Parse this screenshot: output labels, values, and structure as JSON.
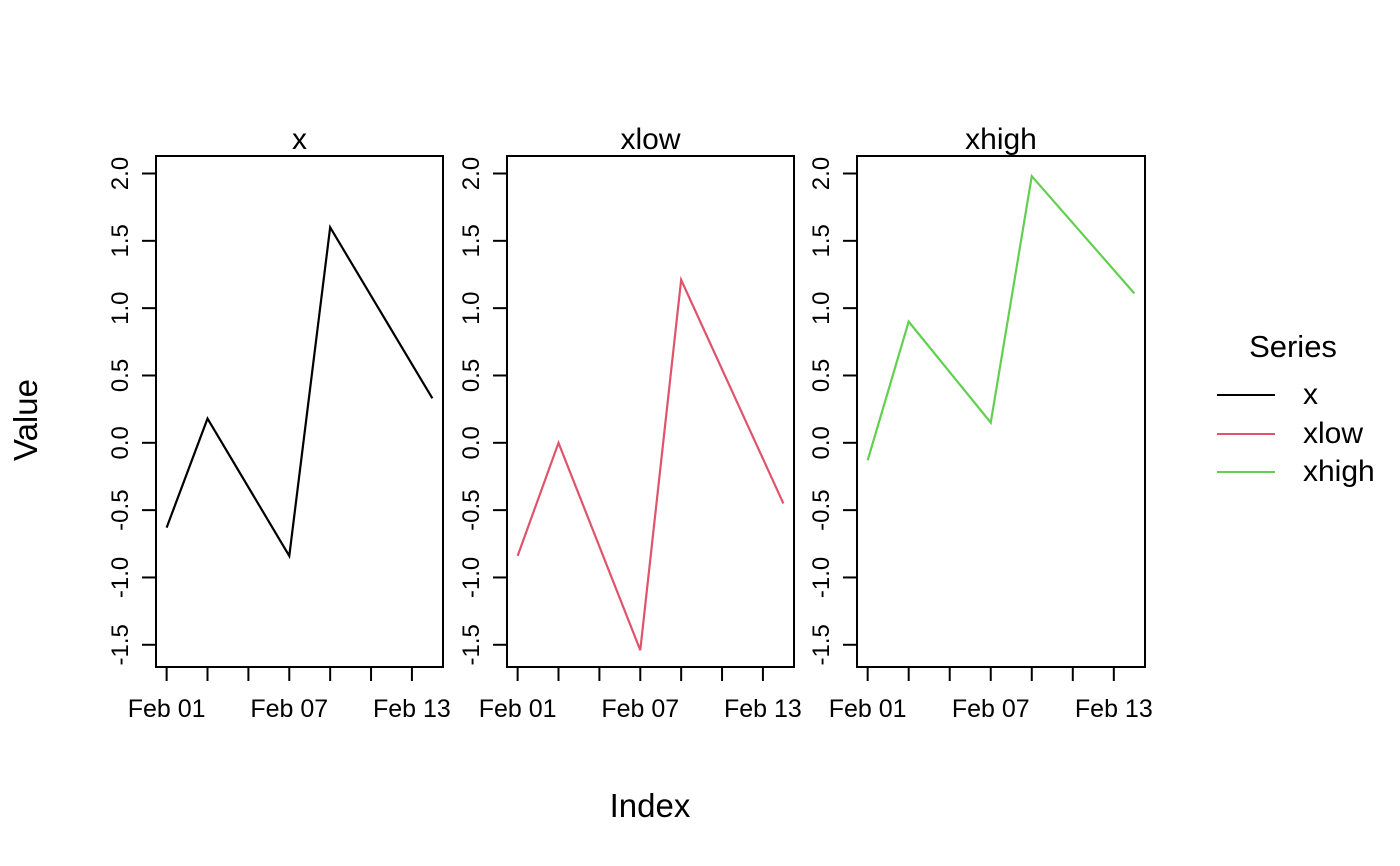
{
  "figure": {
    "background": "#ffffff",
    "xlabel": "Index",
    "ylabel": "Value"
  },
  "legend": {
    "title": "Series",
    "items": [
      {
        "label": "x",
        "color": "#000000"
      },
      {
        "label": "xlow",
        "color": "#DF536B"
      },
      {
        "label": "xhigh",
        "color": "#61D04F"
      }
    ]
  },
  "chart_data": {
    "type": "line",
    "layout": "three side-by-side panels sharing x and y scales, legend on right",
    "xlabel": "Index",
    "ylabel": "Value",
    "x_days": [
      1,
      3,
      7,
      9,
      14
    ],
    "x_dates": [
      "Feb 01",
      "Feb 03",
      "Feb 07",
      "Feb 09",
      "Feb 14"
    ],
    "xlim_days": [
      0.48,
      14.52
    ],
    "ylim": [
      -1.665,
      2.13
    ],
    "y_ticks": [
      -1.5,
      -1.0,
      -0.5,
      0.0,
      0.5,
      1.0,
      1.5,
      2.0
    ],
    "x_tick_days": [
      1,
      3,
      5,
      7,
      9,
      11,
      13
    ],
    "x_tick_labels": [
      {
        "day": 1,
        "label": "Feb 01"
      },
      {
        "day": 7,
        "label": "Feb 07"
      },
      {
        "day": 13,
        "label": "Feb 13"
      }
    ],
    "grid": false,
    "panels": [
      {
        "title": "x",
        "color": "#000000",
        "values": [
          -0.63,
          0.18,
          -0.84,
          1.6,
          0.33
        ]
      },
      {
        "title": "xlow",
        "color": "#DF536B",
        "values": [
          -0.84,
          0.0,
          -1.54,
          1.21,
          -0.45
        ]
      },
      {
        "title": "xhigh",
        "color": "#61D04F",
        "values": [
          -0.13,
          0.9,
          0.15,
          1.98,
          1.11
        ]
      }
    ]
  }
}
